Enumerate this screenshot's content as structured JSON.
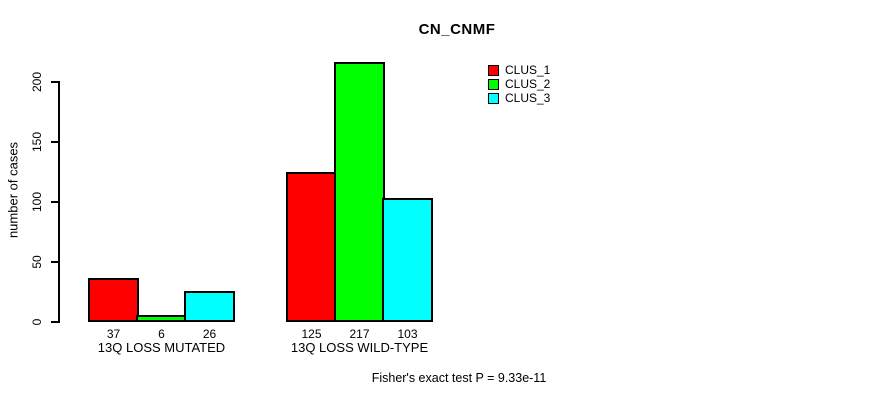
{
  "chart_data": {
    "type": "bar",
    "title": "CN_CNMF",
    "ylabel": "number of cases",
    "xlabel": "",
    "categories": [
      "13Q LOSS MUTATED",
      "13Q LOSS WILD-TYPE"
    ],
    "series": [
      {
        "name": "CLUS_1",
        "color": "#ff0000",
        "values": [
          37,
          125
        ]
      },
      {
        "name": "CLUS_2",
        "color": "#00ff00",
        "values": [
          6,
          217
        ]
      },
      {
        "name": "CLUS_3",
        "color": "#00ffff",
        "values": [
          26,
          103
        ]
      }
    ],
    "yticks": [
      0,
      50,
      100,
      150,
      200
    ],
    "ylim": [
      0,
      200
    ],
    "grid": false,
    "legend_position": "top-right",
    "show_bar_values": true,
    "annotation": "Fisher's exact test P = 9.33e-11"
  },
  "colors": {
    "foreground": "#000000",
    "background": "#ffffff"
  }
}
